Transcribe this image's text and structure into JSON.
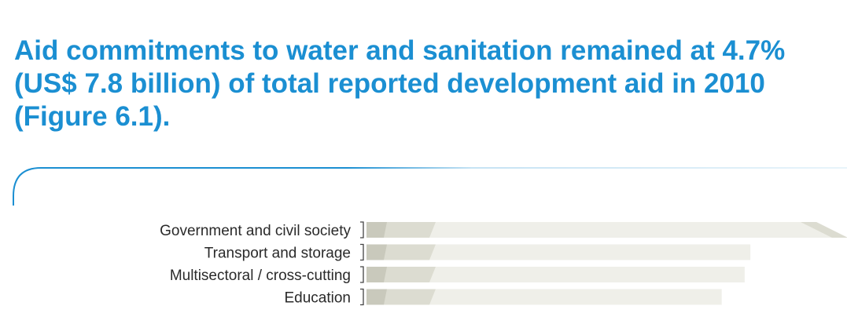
{
  "heading": {
    "lines": [
      "Aid commitments to water and sanitation remained at 4.7%",
      "(US$ 7.8 billion) of total reported development aid in 2010",
      "(Figure 6.1)."
    ]
  },
  "colors": {
    "heading": "#1b8fd2",
    "frame_line": "#1b8fd2",
    "bar_light": "#efefe9",
    "bar_mid": "#dcdcd1",
    "bar_dark": "#c9c9bc",
    "axis": "#444444"
  },
  "chart_data": {
    "type": "bar",
    "orientation": "horizontal",
    "categories": [
      "Government and civil society",
      "Transport and storage",
      "Multisectoral / cross-cutting",
      "Education"
    ],
    "values": [
      8.4,
      6.7,
      6.6,
      6.2
    ],
    "xlim": [
      0,
      8.4
    ],
    "title": "",
    "xlabel": "",
    "ylabel": ""
  }
}
